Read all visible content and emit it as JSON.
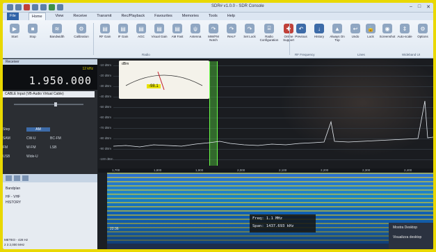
{
  "window": {
    "title": "SDR# v1.0.0 - SDR Console"
  },
  "menu": [
    "File",
    "Home",
    "View",
    "Receive",
    "Transmit",
    "Rec/Playback",
    "Favourites",
    "Memories",
    "Tools",
    "Help"
  ],
  "ribbon": {
    "buttons": [
      {
        "label": "Start",
        "icon": "start-icon"
      },
      {
        "label": "Stop",
        "icon": "stop-icon"
      },
      {
        "label": "Bandwidth",
        "icon": "bandwidth-icon"
      },
      {
        "label": "Calibration",
        "icon": "calibration-icon"
      },
      {
        "label": "Frequency",
        "icon": "frequency-icon"
      },
      {
        "label": "RF Gain",
        "icon": "rf-gain-icon"
      },
      {
        "label": "IF Gain",
        "icon": "if-gain-icon"
      },
      {
        "label": "AGC",
        "icon": "agc-icon"
      },
      {
        "label": "Visual Gain",
        "icon": "visual-gain-icon"
      },
      {
        "label": "AM Fast",
        "icon": "am-fast-icon"
      },
      {
        "label": "Antenna",
        "icon": "antenna-icon"
      },
      {
        "label": "MW/FM Notch",
        "icon": "notch-icon"
      },
      {
        "label": "Res.F",
        "icon": "res-icon"
      },
      {
        "label": "Set Lock",
        "icon": "lock-icon"
      },
      {
        "label": "Radio Configuration",
        "icon": "radio-config-icon"
      },
      {
        "label": "Online Support",
        "icon": "support-icon"
      },
      {
        "label": "Previous",
        "icon": "previous-icon"
      },
      {
        "label": "History",
        "icon": "history-icon"
      },
      {
        "label": "Always On Top",
        "icon": "pin-icon"
      },
      {
        "label": "Undo",
        "icon": "undo-icon"
      },
      {
        "label": "Lock",
        "icon": "lock2-icon"
      },
      {
        "label": "Screenshot",
        "icon": "screenshot-icon"
      },
      {
        "label": "Auto-scale",
        "icon": "autoscale-icon"
      },
      {
        "label": "Options",
        "icon": "options-icon"
      }
    ],
    "groups": [
      "Radio",
      "RF Frequency",
      "Lines",
      "Wideband UI"
    ]
  },
  "left_panel": {
    "header": "Receiver",
    "frequency": "1.950.000",
    "bandwidth": "12 kHz",
    "device": "CABLE Input (VB-Audio Virtual Cable)",
    "modes": [
      [
        "Step",
        "AM"
      ],
      [
        "SAM",
        "CW-U",
        "BC-FM"
      ],
      [
        "FM",
        "W-FM",
        "LSB"
      ],
      [
        "USB",
        "Wide-U"
      ]
    ],
    "lower_items": [
      "Bandplan",
      "HF - VHF",
      "HISTORY"
    ],
    "bottom_items": [
      "METEO - 428 Hz",
      "2 3 2,000 MHz"
    ]
  },
  "spectrum": {
    "y_labels": [
      "-10 dBm",
      "-20 dBm",
      "-30 dBm",
      "-40 dBm",
      "-50 dBm",
      "-60 dBm",
      "-70 dBm",
      "-80 dBm",
      "-90 dBm",
      "-100 dBm"
    ],
    "x_labels": [
      "1,700",
      "1,800",
      "1,900",
      "2,000",
      "2,100",
      "2,200",
      "2,300",
      "2,400"
    ],
    "meter_title": "dBm",
    "meter_value": "-98.1"
  },
  "waterfall": {
    "freq_label": "Freq:",
    "freq_value": "1.1 MHz",
    "span_label": "Span:",
    "span_value": "1437.693 kHz",
    "timestamp": "22:36",
    "popup_title": "Mostra Desktop",
    "popup_item": "Visualizza desktop"
  }
}
